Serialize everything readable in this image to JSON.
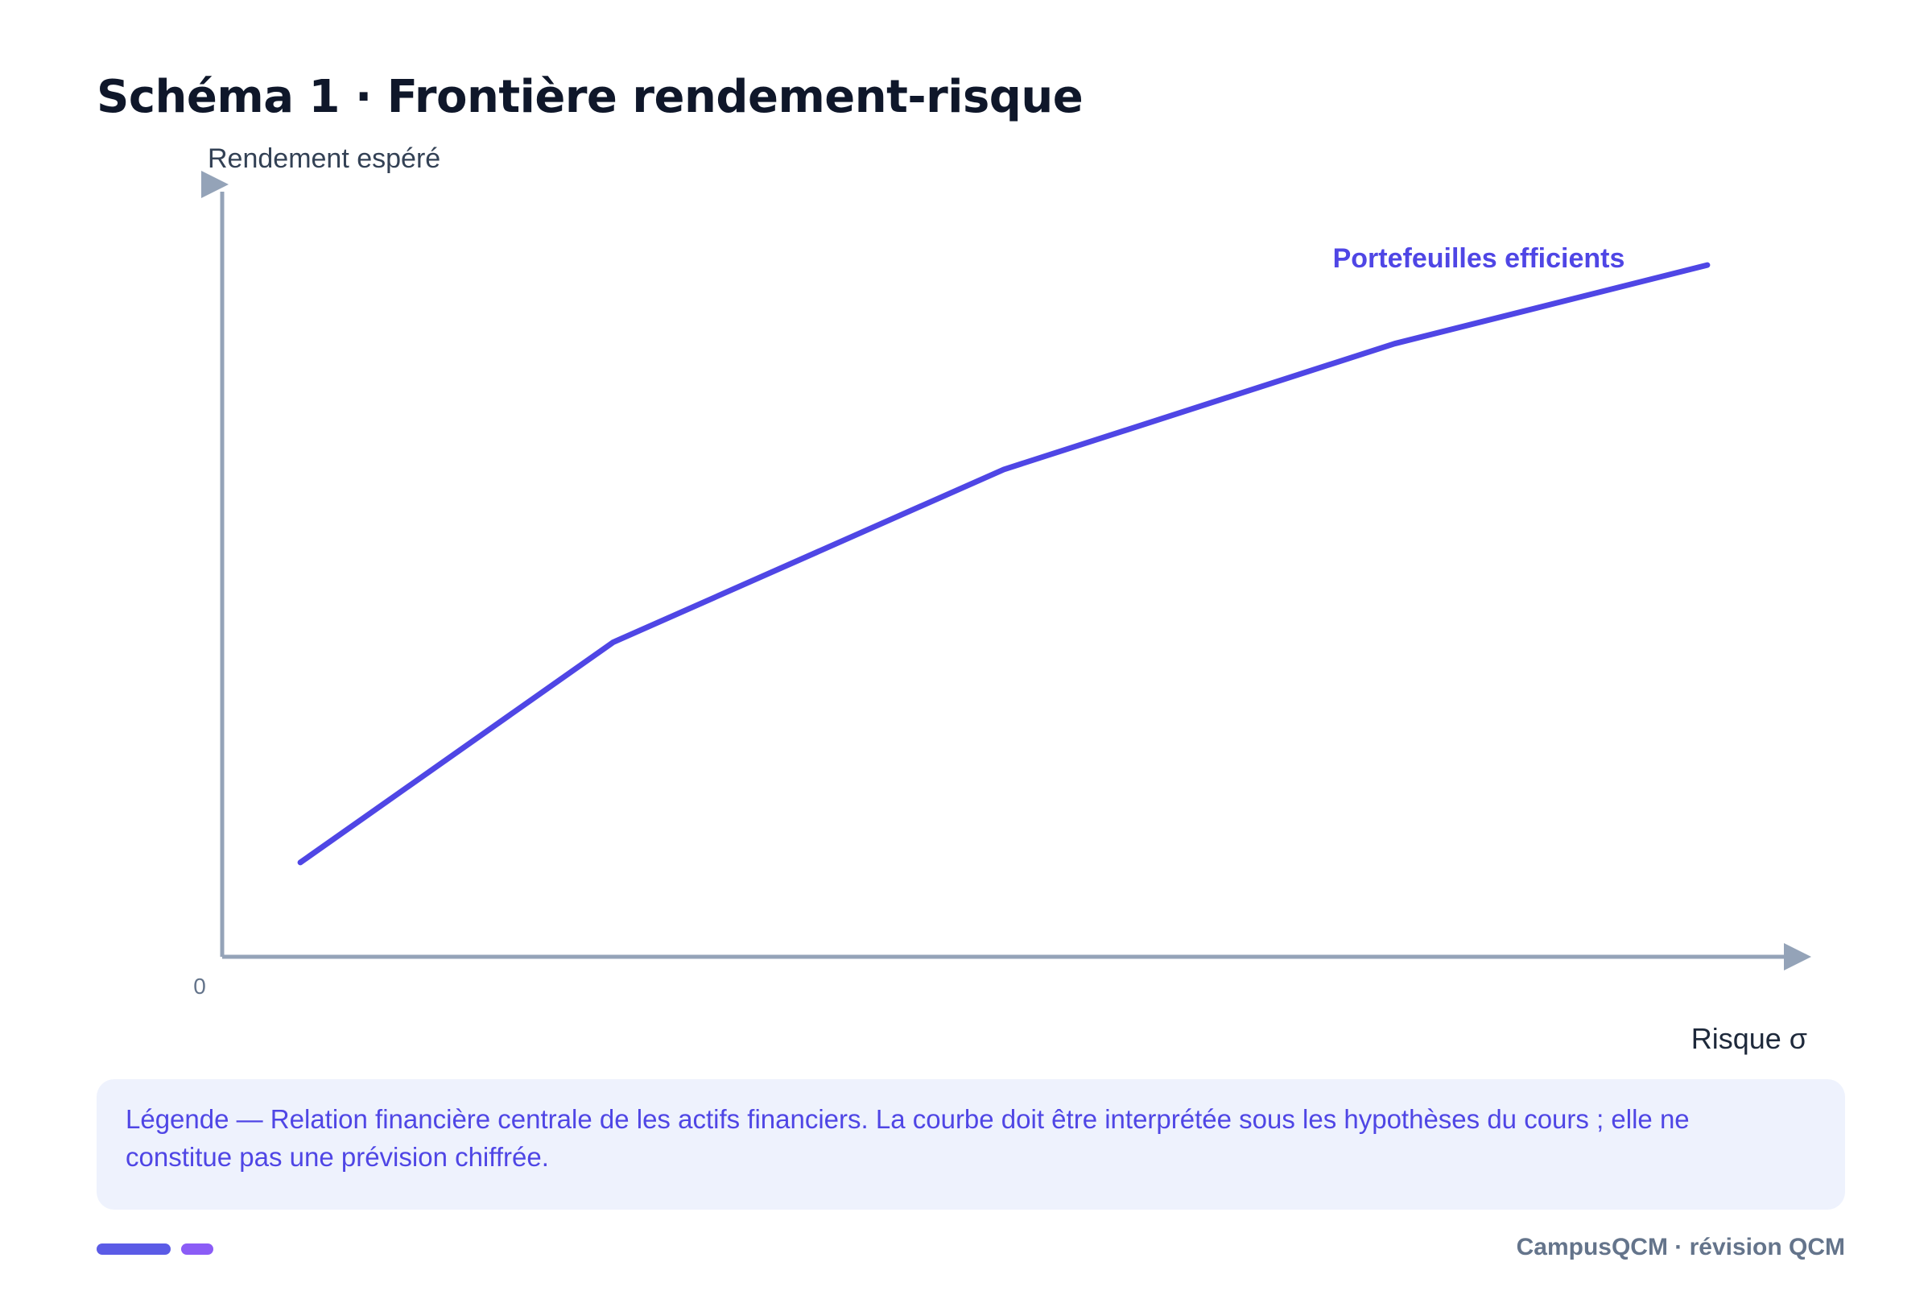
{
  "title": "Schéma 1 · Frontière rendement-risque",
  "chart_data": {
    "type": "line",
    "ylabel": "Rendement espéré",
    "xlabel": "Risque σ",
    "origin_label": "0",
    "series": [
      {
        "name": "Portefeuilles efficients",
        "x": [
          0.05,
          0.25,
          0.5,
          0.75,
          0.95
        ],
        "y": [
          0.12,
          0.4,
          0.62,
          0.78,
          0.88
        ]
      }
    ],
    "xlim": [
      0,
      1
    ],
    "ylim": [
      0,
      1
    ],
    "grid": false,
    "colors": {
      "series": "#4f46e5",
      "axis": "#94a3b8"
    }
  },
  "legend": {
    "text": "Légende — Relation financière centrale de les actifs financiers. La courbe doit être interprétée sous les hypothèses du cours ; elle ne constitue pas une prévision chiffrée."
  },
  "footer": {
    "brand": "CampusQCM · révision QCM"
  }
}
